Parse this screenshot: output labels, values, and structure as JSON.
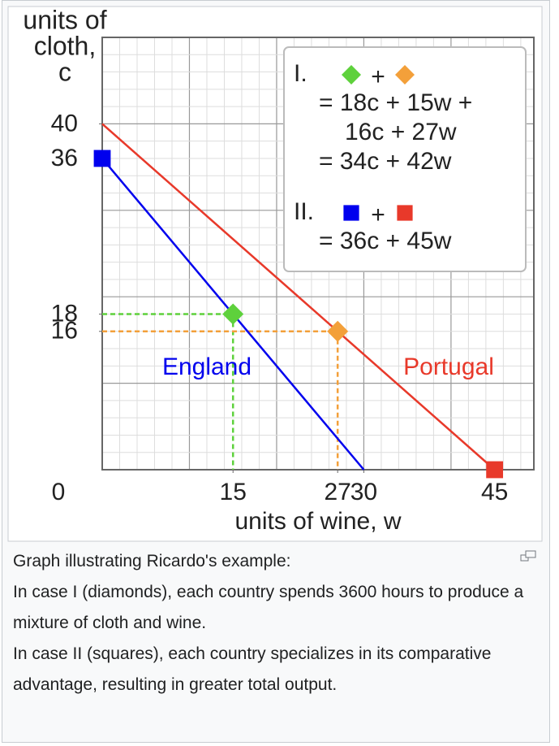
{
  "chart_data": {
    "type": "line",
    "ylabel": [
      "units of",
      "cloth,",
      "c"
    ],
    "xlabel": "units of wine, w",
    "origin_label": 0,
    "xlim": [
      0,
      49.5
    ],
    "ylim": [
      0,
      50
    ],
    "xticks": [
      15,
      27,
      30,
      45
    ],
    "yticks": [
      16,
      18,
      36,
      40
    ],
    "grid": {
      "major": 10,
      "minor": 2
    },
    "series": [
      {
        "name": "England",
        "color": "#0000ee",
        "x": [
          0,
          30
        ],
        "values": [
          36,
          0
        ]
      },
      {
        "name": "Portugal",
        "color": "#e8392a",
        "x": [
          0,
          45
        ],
        "values": [
          40,
          0
        ]
      }
    ],
    "points": [
      {
        "shape": "diamond",
        "color": "#5ed13c",
        "x": 15,
        "y": 18
      },
      {
        "shape": "diamond",
        "color": "#f3a03a",
        "x": 27,
        "y": 16
      },
      {
        "shape": "square",
        "color": "#0000ee",
        "x": 0,
        "y": 36
      },
      {
        "shape": "square",
        "color": "#e8392a",
        "x": 45,
        "y": 0
      }
    ],
    "legend": [
      {
        "label": "I.",
        "markers": [
          0,
          1
        ],
        "operator": "+",
        "lines": [
          "= 18c + 15w +",
          "16c + 27w",
          "= 34c + 42w"
        ]
      },
      {
        "label": "II.",
        "markers": [
          2,
          3
        ],
        "operator": "+",
        "lines": [
          "= 36c + 45w"
        ]
      }
    ]
  },
  "caption": [
    "Graph illustrating Ricardo's example:",
    "In case I (diamonds), each country spends 3600 hours to produce a mixture of cloth and wine.",
    "In case II (squares), each country specializes in its comparative advantage, resulting in greater total output."
  ]
}
